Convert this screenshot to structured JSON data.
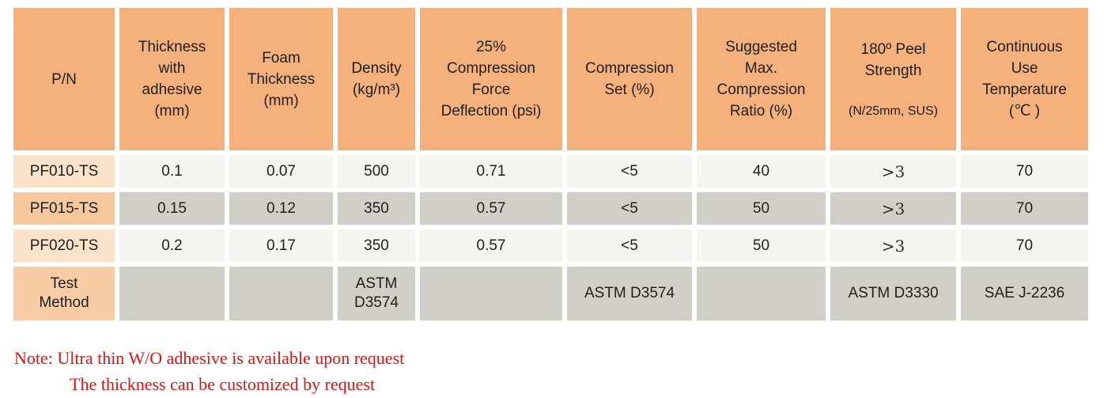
{
  "colors": {
    "header_bg": "#F4B17C",
    "pn_light": "#FBE3C9",
    "pn_mid": "#F6C89C",
    "pn_test": "#F8CCA4",
    "row_light": "#F4F4F0",
    "row_gray": "#D0D0C8",
    "note_red": "#E01212",
    "text": "#1F1F1F"
  },
  "table": {
    "headers": [
      {
        "lines": [
          "P/N"
        ]
      },
      {
        "lines": [
          "Thickness",
          "with",
          "adhesive",
          "(mm)"
        ]
      },
      {
        "lines": [
          "Foam",
          "Thickness",
          "(mm)"
        ]
      },
      {
        "lines": [
          "Density",
          "(kg/m³)"
        ]
      },
      {
        "lines": [
          "25%",
          "Compression",
          "Force",
          "Deflection (psi)"
        ]
      },
      {
        "lines": [
          "Compression",
          "Set (%)"
        ]
      },
      {
        "lines": [
          "Suggested",
          "Max.",
          "Compression",
          "Ratio (%)"
        ]
      },
      {
        "lines": [
          "180º Peel",
          "Strength"
        ],
        "sub": "(N/25mm, SUS)"
      },
      {
        "lines": [
          "Continuous",
          "Use",
          "Temperature",
          "(℃ )"
        ]
      }
    ],
    "rows": [
      {
        "pn": "PF010-TS",
        "values": [
          "0.1",
          "0.07",
          "500",
          "0.71",
          "<5",
          "40",
          ">3",
          "70"
        ]
      },
      {
        "pn": "PF015-TS",
        "values": [
          "0.15",
          "0.12",
          "350",
          "0.57",
          "<5",
          "50",
          ">3",
          "70"
        ]
      },
      {
        "pn": "PF020-TS",
        "values": [
          "0.2",
          "0.17",
          "350",
          "0.57",
          "<5",
          "50",
          ">3",
          "70"
        ]
      }
    ],
    "test_method_row": {
      "pn": [
        "Test",
        "Method"
      ],
      "values": [
        "",
        "",
        "ASTM D3574",
        "",
        "ASTM D3574",
        "",
        "ASTM D3330",
        "SAE J-2236"
      ]
    }
  },
  "note": {
    "line1": "Note: Ultra thin W/O adhesive is available upon request",
    "line2": "The thickness can be customized by request"
  }
}
